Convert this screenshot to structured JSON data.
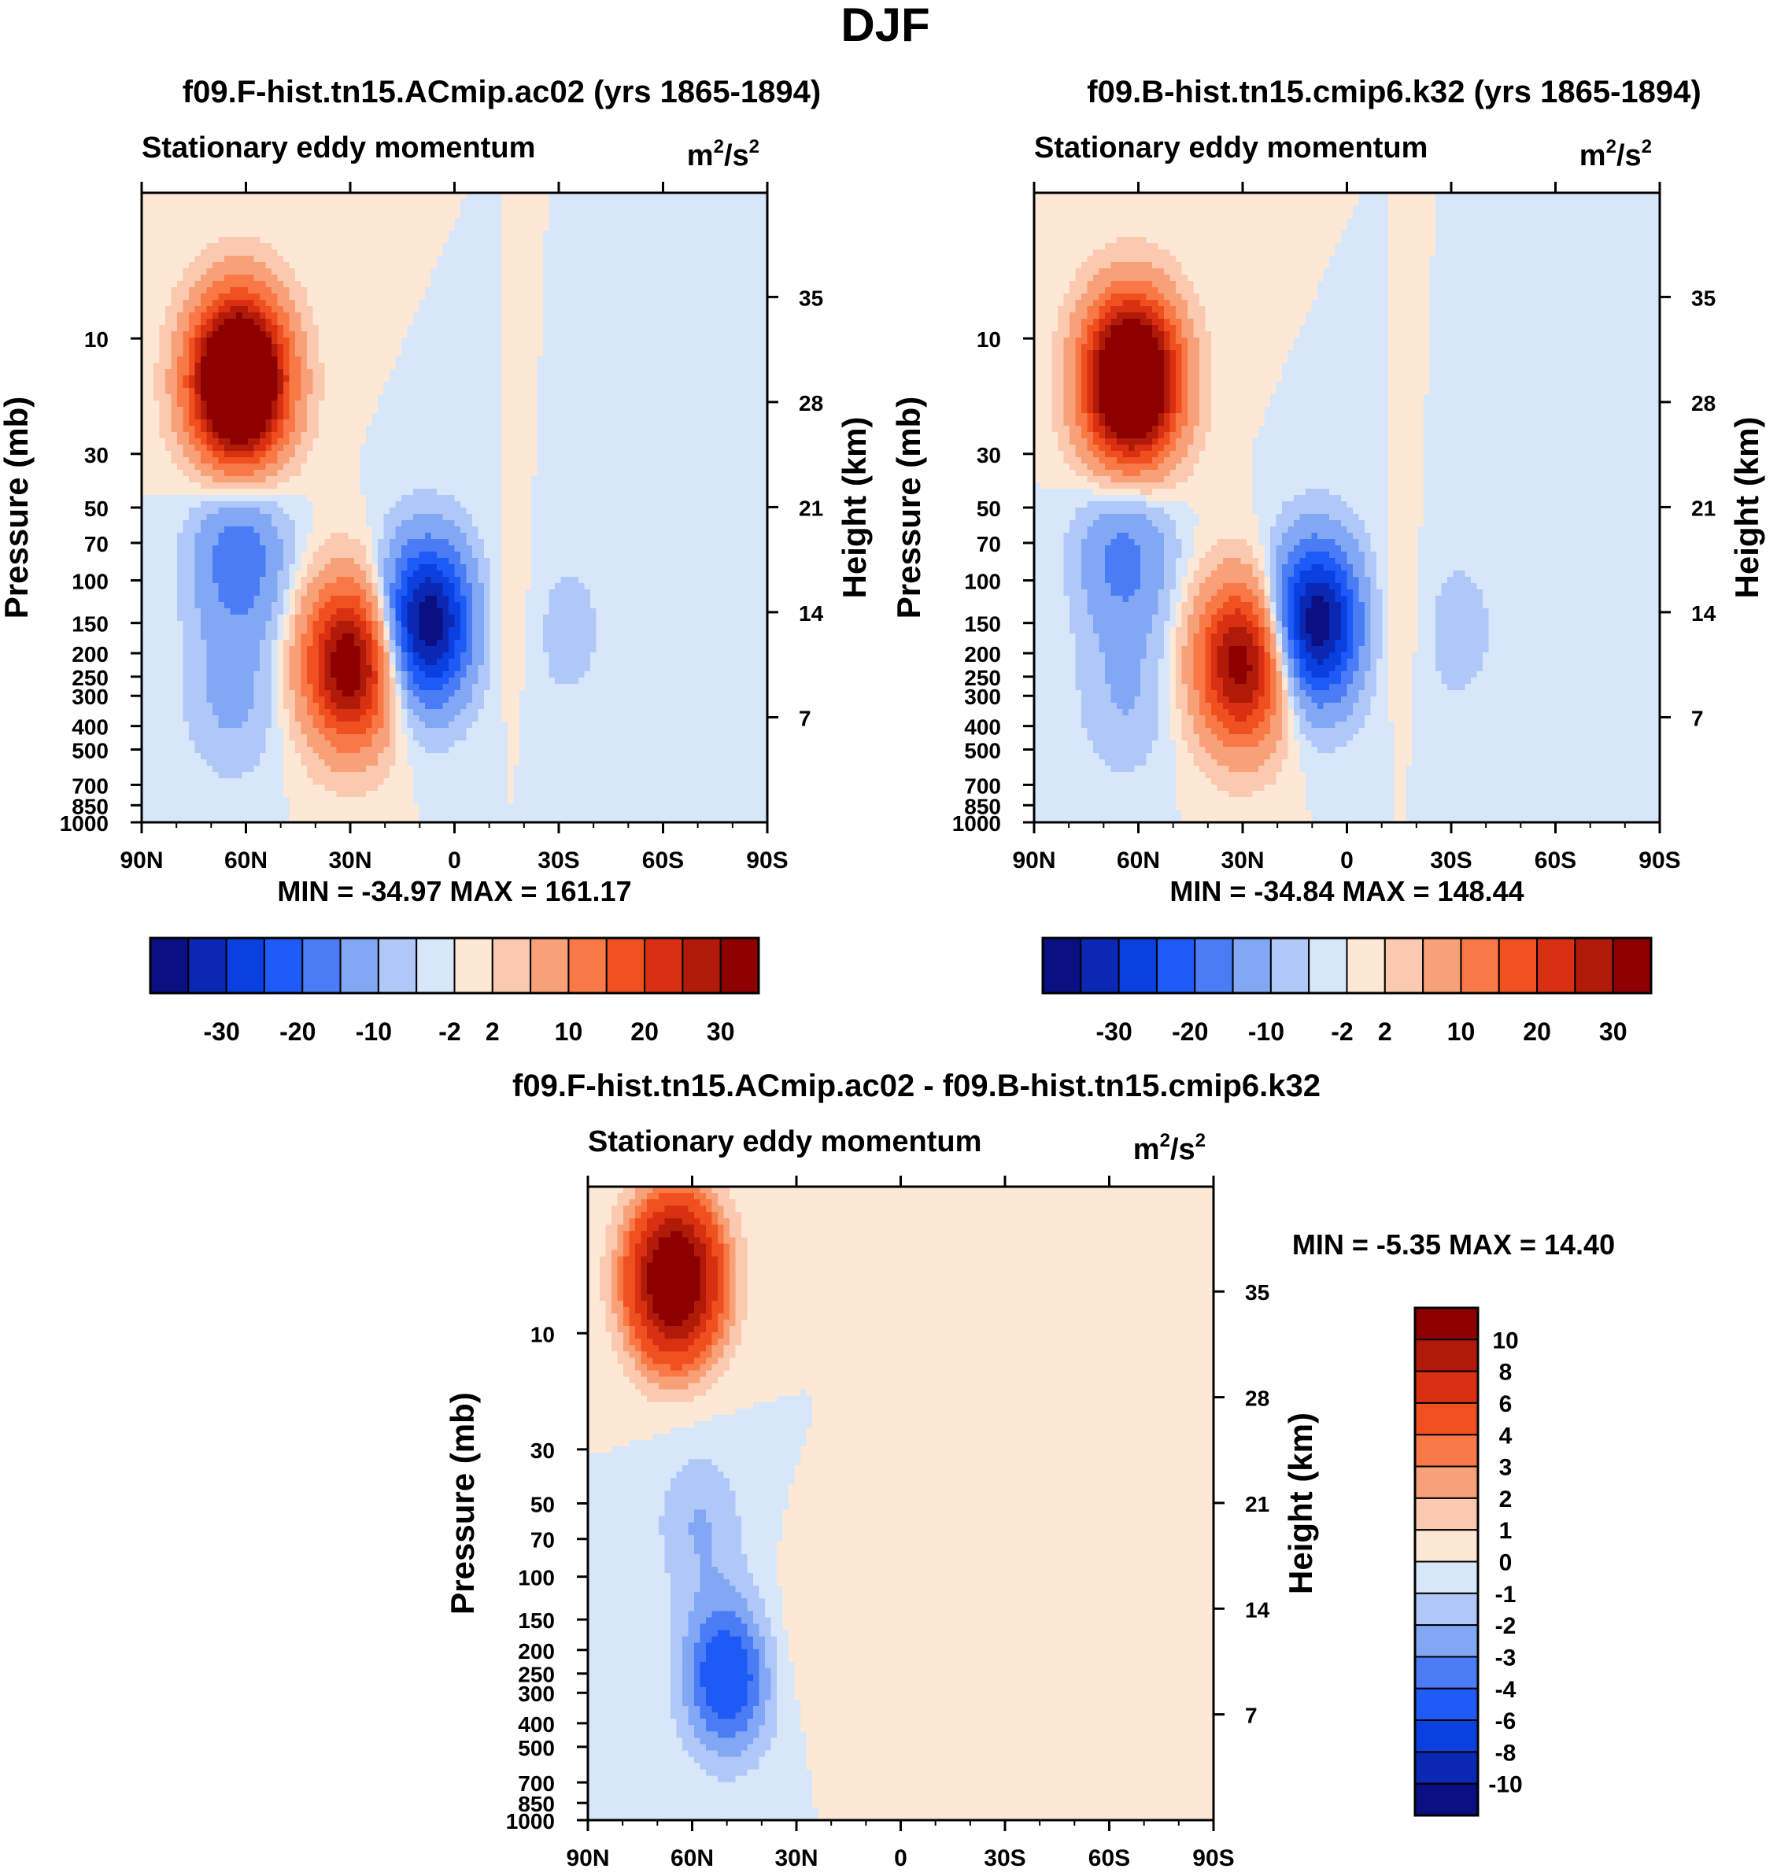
{
  "figure": {
    "title": "DJF"
  },
  "chart_data": [
    {
      "type": "contour",
      "title": "f09.F-hist.tn15.ACmip.ac02 (yrs 1865-1894)",
      "left_label": "Stationary eddy momentum",
      "units_base": "m",
      "units_exp1": "2",
      "units_mid": "/s",
      "units_exp2": "2",
      "ylabel": "Pressure (mb)",
      "ylabel_right": "Height (km)",
      "xticks": [
        "90N",
        "60N",
        "30N",
        "0",
        "30S",
        "60S",
        "90S"
      ],
      "pressure_ticks": [
        "10",
        "30",
        "50",
        "70",
        "100",
        "150",
        "200",
        "250",
        "300",
        "400",
        "500",
        "700",
        "850",
        "1000"
      ],
      "height_ticks": [
        "35",
        "28",
        "21",
        "14",
        "7"
      ],
      "min_max": "MIN = -34.97  MAX = 161.17",
      "field": [
        {
          "lat": 62,
          "lev": 15,
          "val": 60
        },
        {
          "lat": 62,
          "lev": 80,
          "val": -14
        },
        {
          "lat": 64,
          "lev": 300,
          "val": -6
        },
        {
          "lat": 30,
          "lev": 220,
          "val": 36
        },
        {
          "lat": 8,
          "lev": 150,
          "val": -34.97
        },
        {
          "lat": -16,
          "lev": 150,
          "val": 3
        },
        {
          "lat": -30,
          "lev": 160,
          "val": -4
        }
      ]
    },
    {
      "type": "contour",
      "title": "f09.B-hist.tn15.cmip6.k32 (yrs 1865-1894)",
      "left_label": "Stationary eddy momentum",
      "units_base": "m",
      "units_exp1": "2",
      "units_mid": "/s",
      "units_exp2": "2",
      "ylabel": "Pressure (mb)",
      "ylabel_right": "Height (km)",
      "xticks": [
        "90N",
        "60N",
        "30N",
        "0",
        "30S",
        "60S",
        "90S"
      ],
      "pressure_ticks": [
        "10",
        "30",
        "50",
        "70",
        "100",
        "150",
        "200",
        "250",
        "300",
        "400",
        "500",
        "700",
        "850",
        "1000"
      ],
      "height_ticks": [
        "35",
        "28",
        "21",
        "14",
        "7"
      ],
      "min_max": "MIN = -34.84  MAX = 148.44",
      "field": [
        {
          "lat": 62,
          "lev": 15,
          "val": 55
        },
        {
          "lat": 64,
          "lev": 80,
          "val": -12
        },
        {
          "lat": 64,
          "lev": 300,
          "val": -5
        },
        {
          "lat": 30,
          "lev": 220,
          "val": 34
        },
        {
          "lat": 9,
          "lev": 150,
          "val": -34.84
        },
        {
          "lat": -14,
          "lev": 150,
          "val": 3
        },
        {
          "lat": -30,
          "lev": 160,
          "val": -4
        }
      ]
    },
    {
      "type": "contour",
      "title": "f09.F-hist.tn15.ACmip.ac02 - f09.B-hist.tn15.cmip6.k32",
      "left_label": "Stationary eddy momentum",
      "units_base": "m",
      "units_exp1": "2",
      "units_mid": "/s",
      "units_exp2": "2",
      "ylabel": "Pressure (mb)",
      "ylabel_right": "Height (km)",
      "xticks": [
        "90N",
        "60N",
        "30N",
        "0",
        "30S",
        "60S",
        "90S"
      ],
      "pressure_ticks": [
        "10",
        "30",
        "50",
        "70",
        "100",
        "150",
        "200",
        "250",
        "300",
        "400",
        "500",
        "700",
        "850",
        "1000"
      ],
      "height_ticks": [
        "35",
        "28",
        "21",
        "14",
        "7"
      ],
      "min_max": "MIN =  -5.35  MAX =  14.40",
      "field": [
        {
          "lat": 65,
          "lev": 6,
          "val": 14
        },
        {
          "lat": 50,
          "lev": 260,
          "val": -5.35
        },
        {
          "lat": 58,
          "lev": 60,
          "val": -2
        },
        {
          "lat": 25,
          "lev": 170,
          "val": 1
        }
      ]
    }
  ],
  "colorbar_top": {
    "colors": [
      "#0a0f82",
      "#0a28b4",
      "#0a40e0",
      "#1e5af5",
      "#4a7cf5",
      "#82a8f5",
      "#b0c8f8",
      "#d8e6fa",
      "#fde8d6",
      "#fbc8b0",
      "#f8a078",
      "#f87846",
      "#f05020",
      "#d83010",
      "#b01a08",
      "#8c0000"
    ],
    "labels": [
      "-30",
      "-20",
      "-10",
      "-2",
      "2",
      "10",
      "20",
      "30"
    ],
    "levels": [
      -30,
      -25,
      -20,
      -15,
      -10,
      -5,
      -2,
      0,
      2,
      5,
      10,
      15,
      20,
      25,
      30
    ]
  },
  "colorbar_diff": {
    "colors": [
      "#0a0f82",
      "#0a28b4",
      "#0a40e0",
      "#1e5af5",
      "#4a7cf5",
      "#82a8f5",
      "#b0c8f8",
      "#d8e6fa",
      "#fde8d6",
      "#fbc8b0",
      "#f8a078",
      "#f87846",
      "#f05020",
      "#d83010",
      "#b01a08",
      "#8c0000"
    ],
    "labels": [
      "10",
      "8",
      "6",
      "4",
      "3",
      "2",
      "1",
      "0",
      "-1",
      "-2",
      "-3",
      "-4",
      "-6",
      "-8",
      "-10"
    ],
    "levels": [
      -10,
      -8,
      -6,
      -4,
      -3,
      -2,
      -1,
      0,
      1,
      2,
      3,
      4,
      6,
      8,
      10
    ]
  }
}
